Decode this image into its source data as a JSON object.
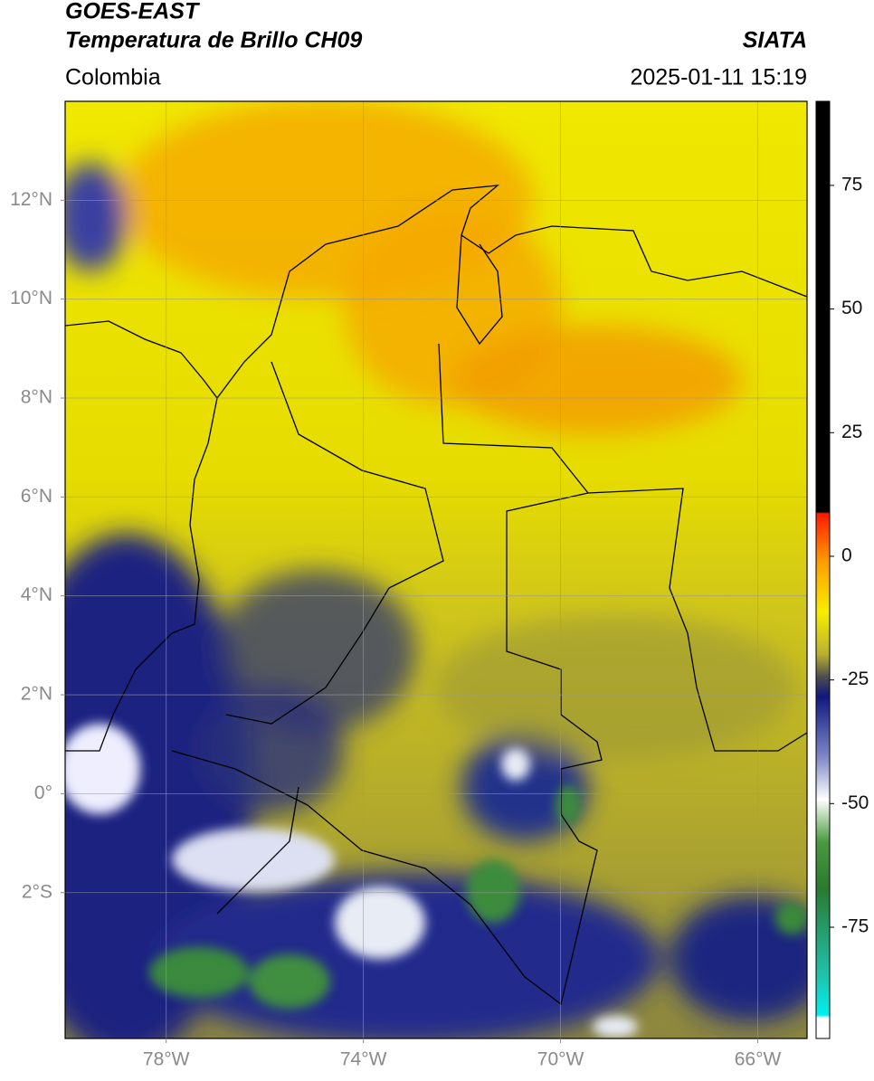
{
  "header": {
    "satellite": "GOES-EAST",
    "product": "Temperatura de Brillo CH09",
    "source": "SIATA",
    "region": "Colombia",
    "datetime": "2025-01-11 15:19"
  },
  "map": {
    "xlim": [
      -80.05,
      -65.0
    ],
    "ylim": [
      -4.95,
      14.0
    ],
    "xticks": [
      {
        "value": -78,
        "label": "78°W"
      },
      {
        "value": -74,
        "label": "74°W"
      },
      {
        "value": -70,
        "label": "70°W"
      },
      {
        "value": -66,
        "label": "66°W"
      }
    ],
    "yticks": [
      {
        "value": 12,
        "label": "12°N"
      },
      {
        "value": 10,
        "label": "10°N"
      },
      {
        "value": 8,
        "label": "8°N"
      },
      {
        "value": 6,
        "label": "6°N"
      },
      {
        "value": 4,
        "label": "4°N"
      },
      {
        "value": 2,
        "label": "2°N"
      },
      {
        "value": 0,
        "label": "0°"
      },
      {
        "value": -2,
        "label": "2°S"
      }
    ],
    "grid": true
  },
  "colorbar": {
    "lim": [
      -97.5,
      92
    ],
    "ticks": [
      75,
      50,
      25,
      0,
      -25,
      -50,
      -75
    ]
  }
}
